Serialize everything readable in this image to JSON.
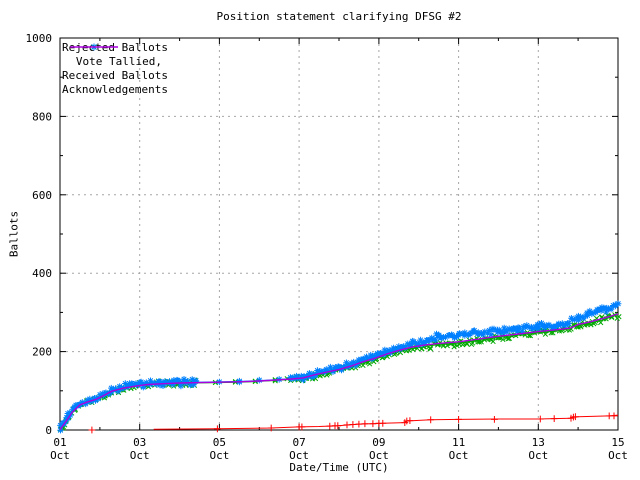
{
  "window": {
    "background": "#ffffff"
  },
  "chart_data": {
    "type": "line",
    "title": "Position statement clarifying DFSG #2",
    "xlabel": "Date/Time (UTC)",
    "ylabel": "Ballots",
    "xlim": [
      1,
      15
    ],
    "ylim": [
      0,
      1000
    ],
    "x_ticks": {
      "values": [
        1,
        3,
        5,
        7,
        9,
        11,
        13,
        15
      ],
      "labels": [
        "01 Oct",
        "03 Oct",
        "05 Oct",
        "07 Oct",
        "09 Oct",
        "11 Oct",
        "13 Oct",
        "15 Oct"
      ]
    },
    "x_minor_step": 1,
    "y_ticks": [
      0,
      200,
      400,
      600,
      800,
      1000
    ],
    "y_minor_step": 100,
    "x_grid": [
      3,
      5,
      7,
      9,
      11,
      13
    ],
    "y_grid": [
      200,
      400,
      600,
      800
    ],
    "grid_on": true,
    "grid_color": "#a6a6a6",
    "axis_color": "#000000",
    "legend_position": "top-left",
    "series": [
      {
        "id": "rejected-ballots",
        "label": "Rejected Ballots",
        "color": "#ff0000",
        "marker": "plus",
        "dense": false,
        "line_points": [
          [
            3.35,
            2
          ],
          [
            4.95,
            3
          ],
          [
            6.3,
            5
          ],
          [
            7.0,
            8
          ],
          [
            7.5,
            9
          ],
          [
            7.97,
            11
          ],
          [
            8.5,
            15
          ],
          [
            9.1,
            17
          ],
          [
            9.65,
            19
          ],
          [
            9.7,
            23
          ],
          [
            10.3,
            26
          ],
          [
            11.0,
            27
          ],
          [
            12.0,
            28
          ],
          [
            13.0,
            28
          ],
          [
            13.8,
            30
          ],
          [
            13.88,
            33
          ],
          [
            14.0,
            34
          ],
          [
            14.78,
            36
          ],
          [
            15.0,
            38
          ]
        ],
        "marker_points": [
          [
            1.8,
            0
          ],
          [
            4.95,
            3
          ],
          [
            6.3,
            5
          ],
          [
            7.0,
            8
          ],
          [
            7.07,
            8
          ],
          [
            7.77,
            10
          ],
          [
            7.9,
            11
          ],
          [
            7.97,
            11
          ],
          [
            8.2,
            13
          ],
          [
            8.35,
            14
          ],
          [
            8.5,
            15
          ],
          [
            8.65,
            16
          ],
          [
            8.85,
            16
          ],
          [
            9.0,
            17
          ],
          [
            9.1,
            17
          ],
          [
            9.65,
            19
          ],
          [
            9.7,
            23
          ],
          [
            9.78,
            24
          ],
          [
            10.3,
            26
          ],
          [
            11.0,
            27
          ],
          [
            11.9,
            27
          ],
          [
            13.05,
            28
          ],
          [
            13.4,
            29
          ],
          [
            13.82,
            30
          ],
          [
            13.88,
            33
          ],
          [
            13.93,
            34
          ],
          [
            14.78,
            36
          ],
          [
            14.9,
            36
          ]
        ]
      },
      {
        "id": "vote-tallied",
        "label": "Vote Tallied,",
        "color": "#00a800",
        "marker": "cross",
        "dense": true,
        "sparse_ranges": [
          [
            4.4,
            6.8
          ]
        ],
        "points": [
          [
            1.0,
            2
          ],
          [
            1.1,
            14
          ],
          [
            1.2,
            32
          ],
          [
            1.35,
            52
          ],
          [
            1.5,
            63
          ],
          [
            1.7,
            71
          ],
          [
            1.9,
            77
          ],
          [
            2.1,
            87
          ],
          [
            2.3,
            97
          ],
          [
            2.5,
            105
          ],
          [
            2.7,
            109
          ],
          [
            2.9,
            112
          ],
          [
            3.1,
            115
          ],
          [
            3.5,
            117
          ],
          [
            4.0,
            119
          ],
          [
            4.4,
            120
          ],
          [
            5.0,
            121
          ],
          [
            5.5,
            122
          ],
          [
            6.0,
            124
          ],
          [
            6.5,
            127
          ],
          [
            6.8,
            129
          ],
          [
            7.1,
            132
          ],
          [
            7.4,
            139
          ],
          [
            7.7,
            146
          ],
          [
            8.0,
            152
          ],
          [
            8.3,
            161
          ],
          [
            8.6,
            171
          ],
          [
            8.9,
            180
          ],
          [
            9.2,
            191
          ],
          [
            9.5,
            200
          ],
          [
            9.8,
            207
          ],
          [
            10.1,
            212
          ],
          [
            10.5,
            218
          ],
          [
            11.0,
            222
          ],
          [
            11.5,
            229
          ],
          [
            12.0,
            236
          ],
          [
            12.5,
            242
          ],
          [
            13.0,
            248
          ],
          [
            13.4,
            252
          ],
          [
            13.7,
            257
          ],
          [
            14.0,
            266
          ],
          [
            14.3,
            273
          ],
          [
            14.6,
            280
          ],
          [
            15.0,
            294
          ]
        ]
      },
      {
        "id": "received-ballots",
        "label": "Received Ballots",
        "color": "#0080ff",
        "marker": "asterisk",
        "dense": true,
        "sparse_ranges": [
          [
            4.4,
            6.8
          ]
        ],
        "points": [
          [
            1.0,
            5
          ],
          [
            1.1,
            19
          ],
          [
            1.2,
            38
          ],
          [
            1.35,
            56
          ],
          [
            1.5,
            66
          ],
          [
            1.7,
            74
          ],
          [
            1.9,
            80
          ],
          [
            2.1,
            91
          ],
          [
            2.3,
            101
          ],
          [
            2.5,
            108
          ],
          [
            2.7,
            112
          ],
          [
            2.9,
            115
          ],
          [
            3.1,
            118
          ],
          [
            3.5,
            120
          ],
          [
            4.0,
            121
          ],
          [
            4.4,
            122
          ],
          [
            5.0,
            123
          ],
          [
            5.5,
            124
          ],
          [
            6.0,
            126
          ],
          [
            6.5,
            129
          ],
          [
            6.8,
            131
          ],
          [
            7.1,
            135
          ],
          [
            7.4,
            143
          ],
          [
            7.7,
            151
          ],
          [
            8.0,
            158
          ],
          [
            8.3,
            168
          ],
          [
            8.6,
            179
          ],
          [
            8.9,
            189
          ],
          [
            9.2,
            201
          ],
          [
            9.5,
            211
          ],
          [
            9.8,
            219
          ],
          [
            10.1,
            226
          ],
          [
            10.5,
            237
          ],
          [
            11.0,
            241
          ],
          [
            11.5,
            247
          ],
          [
            12.0,
            253
          ],
          [
            12.5,
            259
          ],
          [
            13.0,
            263
          ],
          [
            13.4,
            267
          ],
          [
            13.7,
            273
          ],
          [
            14.0,
            285
          ],
          [
            14.3,
            296
          ],
          [
            14.6,
            306
          ],
          [
            15.0,
            322
          ]
        ]
      },
      {
        "id": "acknowledgements",
        "label": "Acknowledgements",
        "color": "#aa00dd",
        "marker": null,
        "dense": false,
        "line_width": 1.4,
        "points": [
          [
            1.0,
            1
          ],
          [
            1.15,
            22
          ],
          [
            1.3,
            45
          ],
          [
            1.5,
            64
          ],
          [
            1.7,
            72
          ],
          [
            1.9,
            78
          ],
          [
            2.1,
            88
          ],
          [
            2.3,
            99
          ],
          [
            2.6,
            107
          ],
          [
            2.9,
            112
          ],
          [
            3.2,
            116
          ],
          [
            3.6,
            118
          ],
          [
            4.0,
            120
          ],
          [
            4.5,
            121
          ],
          [
            5.0,
            122
          ],
          [
            5.5,
            123
          ],
          [
            6.0,
            125
          ],
          [
            6.5,
            128
          ],
          [
            6.8,
            130
          ],
          [
            7.1,
            133
          ],
          [
            7.4,
            141
          ],
          [
            7.7,
            148
          ],
          [
            8.0,
            154
          ],
          [
            8.3,
            163
          ],
          [
            8.6,
            174
          ],
          [
            8.9,
            183
          ],
          [
            9.2,
            194
          ],
          [
            9.5,
            203
          ],
          [
            9.8,
            211
          ],
          [
            10.1,
            216
          ],
          [
            10.5,
            221
          ],
          [
            11.0,
            225
          ],
          [
            11.5,
            232
          ],
          [
            12.0,
            239
          ],
          [
            12.5,
            245
          ],
          [
            13.0,
            251
          ],
          [
            13.5,
            256
          ],
          [
            13.8,
            260
          ],
          [
            14.0,
            269
          ],
          [
            14.3,
            276
          ],
          [
            14.6,
            284
          ],
          [
            15.0,
            296
          ]
        ]
      }
    ]
  }
}
